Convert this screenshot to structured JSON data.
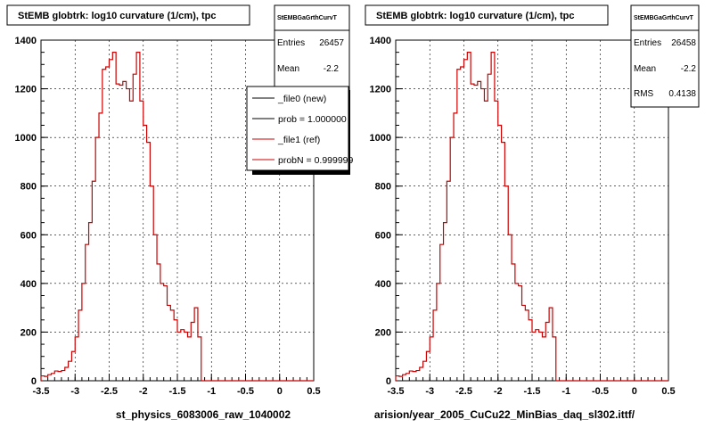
{
  "chart_data": [
    {
      "type": "line",
      "title": "StEMB globtrk: log10 curvature (1/cm), tpc",
      "xlabel": "st_physics_6083006_raw_1040002",
      "ylabel": "",
      "xlim": [
        -3.5,
        0.5
      ],
      "ylim": [
        0,
        1400
      ],
      "x_ticks": [
        "-3.5",
        "-3",
        "-2.5",
        "-2",
        "-1.5",
        "-1",
        "-0.5",
        "0",
        "0.5"
      ],
      "y_ticks": [
        "0",
        "200",
        "400",
        "600",
        "800",
        "1000",
        "1200",
        "1400"
      ],
      "grid": true,
      "stats": {
        "name": "StEMBGaGrthCurvT",
        "entries_label": "Entries",
        "entries_value": "26457",
        "mean_label": "Mean",
        "mean_value": "-2.2"
      },
      "legend": {
        "placement": "top-right",
        "entries": [
          {
            "label": "_file0 (new)",
            "color": "#000000"
          },
          {
            "label": "prob = 1.000000",
            "color": "#000000"
          },
          {
            "label": "_file1 (ref)",
            "color": "#cc0000"
          },
          {
            "label": "probN = 0.999999",
            "color": "#cc0000"
          }
        ]
      },
      "series": [
        {
          "color": "#cc0000",
          "x_start": -3.5,
          "bin_width": 0.05,
          "values": [
            20,
            18,
            25,
            30,
            40,
            38,
            42,
            55,
            80,
            120,
            180,
            290,
            400,
            560,
            650,
            820,
            1000,
            1100,
            1280,
            1290,
            1320,
            1350,
            1220,
            1215,
            1230,
            1200,
            1150,
            1260,
            1350,
            1150,
            1050,
            980,
            800,
            600,
            480,
            400,
            390,
            310,
            290,
            250,
            200,
            210,
            200,
            180,
            240,
            300,
            180,
            0,
            0,
            0,
            0,
            0,
            0,
            0,
            0,
            0,
            0,
            0,
            0,
            0,
            0,
            0,
            0,
            0,
            0,
            0,
            0,
            0,
            0,
            0,
            0,
            0,
            0,
            0,
            0,
            0,
            0,
            0,
            0,
            0
          ]
        }
      ]
    },
    {
      "type": "line",
      "title": "StEMB globtrk: log10 curvature (1/cm), tpc",
      "xlabel": "arision/year_2005_CuCu22_MinBias_daq_sl302.ittf/",
      "ylabel": "",
      "xlim": [
        -3.5,
        0.5
      ],
      "ylim": [
        0,
        1400
      ],
      "x_ticks": [
        "-3.5",
        "-3",
        "-2.5",
        "-2",
        "-1.5",
        "-1",
        "-0.5",
        "0",
        "0.5"
      ],
      "y_ticks": [
        "0",
        "200",
        "400",
        "600",
        "800",
        "1000",
        "1200",
        "1400"
      ],
      "grid": true,
      "stats": {
        "name": "StEMBGaGrthCurvT",
        "entries_label": "Entries",
        "entries_value": "26458",
        "mean_label": "Mean",
        "mean_value": "-2.2",
        "rms_label": "RMS",
        "rms_value": "0.4138"
      },
      "series": [
        {
          "color": "#cc0000",
          "x_start": -3.5,
          "bin_width": 0.05,
          "values": [
            20,
            18,
            25,
            30,
            40,
            38,
            42,
            55,
            80,
            120,
            180,
            290,
            400,
            560,
            650,
            820,
            1000,
            1100,
            1280,
            1290,
            1320,
            1350,
            1220,
            1215,
            1230,
            1200,
            1150,
            1260,
            1350,
            1150,
            1050,
            980,
            800,
            600,
            480,
            400,
            390,
            310,
            290,
            250,
            200,
            210,
            200,
            180,
            240,
            300,
            180,
            0,
            0,
            0,
            0,
            0,
            0,
            0,
            0,
            0,
            0,
            0,
            0,
            0,
            0,
            0,
            0,
            0,
            0,
            0,
            0,
            0,
            0,
            0,
            0,
            0,
            0,
            0,
            0,
            0,
            0,
            0,
            0,
            0
          ]
        }
      ]
    }
  ]
}
